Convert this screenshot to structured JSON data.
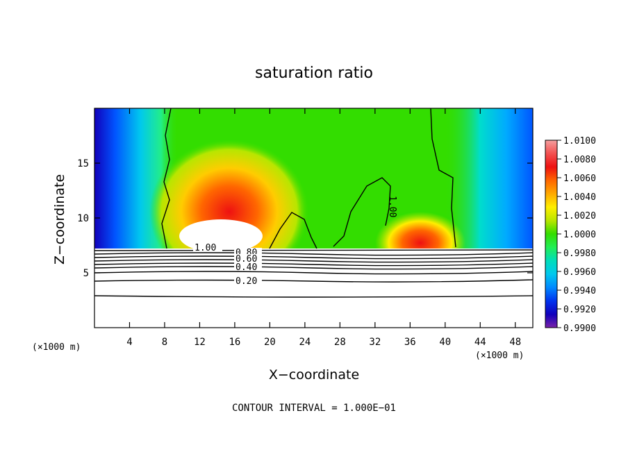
{
  "chart_data": {
    "type": "heatmap",
    "title": "saturation ratio",
    "xlabel": "X−coordinate",
    "ylabel": "Z−coordinate",
    "x_unit": "(×1000 m)",
    "y_unit": "(×1000 m)",
    "xlim": [
      0,
      50
    ],
    "ylim": [
      0,
      20
    ],
    "x_ticks": [
      4,
      8,
      12,
      16,
      20,
      24,
      28,
      32,
      36,
      40,
      44,
      48
    ],
    "y_ticks": [
      5,
      10,
      15
    ],
    "x_tick_labels": [
      "4",
      "8",
      "12",
      "16",
      "20",
      "24",
      "28",
      "32",
      "36",
      "40",
      "44",
      "48"
    ],
    "y_tick_labels": [
      "5",
      "10",
      "15"
    ],
    "colorbar": {
      "min": 0.99,
      "max": 1.01,
      "labels": [
        "1.0100",
        "1.0080",
        "1.0060",
        "1.0040",
        "1.0020",
        "1.0000",
        "0.9980",
        "0.9960",
        "0.9940",
        "0.9920",
        "0.9900"
      ],
      "colors": [
        "#f4a0a0",
        "#f35050",
        "#ee1111",
        "#ff6600",
        "#ffaa00",
        "#ffee00",
        "#b8e600",
        "#33dd00",
        "#22ee55",
        "#00ddbb",
        "#00c8ee",
        "#0088ff",
        "#0033ee",
        "#1100bb",
        "#7a22aa"
      ]
    },
    "contour_interval": "CONTOUR INTERVAL = 1.000E−01",
    "contour_labels": [
      "1.00",
      "0.80",
      "0.60",
      "0.40",
      "0.20",
      "1.00"
    ]
  }
}
